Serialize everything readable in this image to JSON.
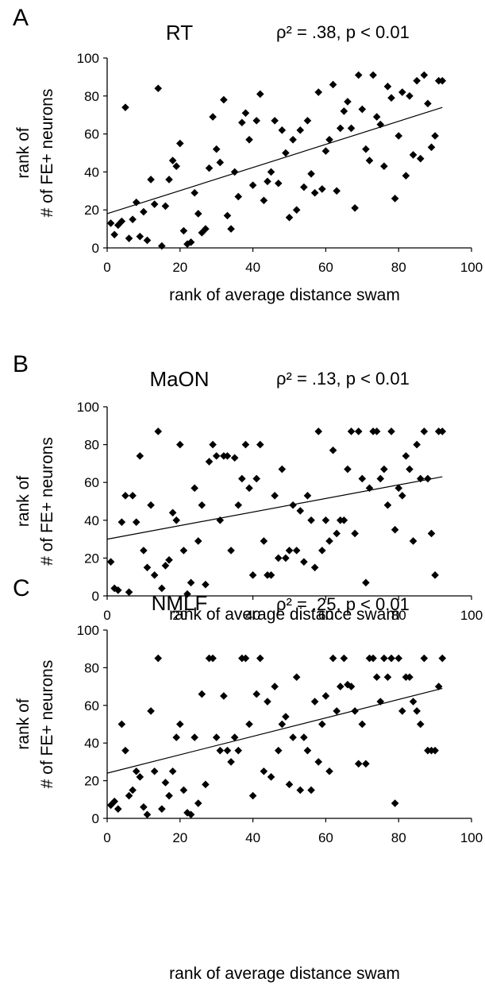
{
  "chart_data": [
    {
      "type": "scatter",
      "panel_letter": "A",
      "title": "RT",
      "stat_label": "ρ² = .38, p < 0.01",
      "xlabel": "rank of average distance swam",
      "ylabel_line1": "rank of",
      "ylabel_line2": "# of FE+ neurons",
      "xlim": [
        0,
        100
      ],
      "ylim": [
        0,
        100
      ],
      "xticks": [
        0,
        20,
        40,
        60,
        80,
        100
      ],
      "yticks": [
        0,
        20,
        40,
        60,
        80,
        100
      ],
      "grid": false,
      "trendline": {
        "x1": 0,
        "y1": 18,
        "x2": 92,
        "y2": 74
      },
      "points": [
        [
          1,
          13
        ],
        [
          2,
          7
        ],
        [
          3,
          12
        ],
        [
          4,
          14
        ],
        [
          5,
          74
        ],
        [
          6,
          5
        ],
        [
          7,
          15
        ],
        [
          8,
          24
        ],
        [
          9,
          6
        ],
        [
          10,
          19
        ],
        [
          11,
          4
        ],
        [
          12,
          36
        ],
        [
          13,
          23
        ],
        [
          14,
          84
        ],
        [
          15,
          1
        ],
        [
          16,
          22
        ],
        [
          17,
          36
        ],
        [
          18,
          46
        ],
        [
          19,
          43
        ],
        [
          20,
          55
        ],
        [
          21,
          9
        ],
        [
          22,
          2
        ],
        [
          23,
          3
        ],
        [
          24,
          29
        ],
        [
          25,
          18
        ],
        [
          26,
          8
        ],
        [
          27,
          10
        ],
        [
          28,
          42
        ],
        [
          29,
          69
        ],
        [
          30,
          52
        ],
        [
          31,
          45
        ],
        [
          32,
          78
        ],
        [
          33,
          17
        ],
        [
          34,
          10
        ],
        [
          35,
          40
        ],
        [
          36,
          27
        ],
        [
          37,
          66
        ],
        [
          38,
          71
        ],
        [
          39,
          57
        ],
        [
          40,
          33
        ],
        [
          41,
          67
        ],
        [
          42,
          81
        ],
        [
          43,
          25
        ],
        [
          44,
          35
        ],
        [
          45,
          40
        ],
        [
          46,
          67
        ],
        [
          47,
          34
        ],
        [
          48,
          62
        ],
        [
          49,
          50
        ],
        [
          50,
          16
        ],
        [
          51,
          57
        ],
        [
          52,
          20
        ],
        [
          53,
          62
        ],
        [
          54,
          32
        ],
        [
          55,
          67
        ],
        [
          56,
          39
        ],
        [
          57,
          29
        ],
        [
          58,
          82
        ],
        [
          59,
          31
        ],
        [
          60,
          51
        ],
        [
          61,
          57
        ],
        [
          62,
          86
        ],
        [
          63,
          30
        ],
        [
          64,
          63
        ],
        [
          65,
          72
        ],
        [
          66,
          77
        ],
        [
          67,
          63
        ],
        [
          68,
          21
        ],
        [
          69,
          91
        ],
        [
          70,
          73
        ],
        [
          71,
          52
        ],
        [
          72,
          46
        ],
        [
          73,
          91
        ],
        [
          74,
          69
        ],
        [
          75,
          65
        ],
        [
          76,
          43
        ],
        [
          77,
          85
        ],
        [
          78,
          79
        ],
        [
          79,
          26
        ],
        [
          80,
          59
        ],
        [
          81,
          82
        ],
        [
          82,
          38
        ],
        [
          83,
          80
        ],
        [
          84,
          49
        ],
        [
          85,
          88
        ],
        [
          86,
          47
        ],
        [
          87,
          91
        ],
        [
          88,
          76
        ],
        [
          89,
          53
        ],
        [
          90,
          59
        ],
        [
          91,
          88
        ],
        [
          92,
          88
        ]
      ]
    },
    {
      "type": "scatter",
      "panel_letter": "B",
      "title": "MaON",
      "stat_label": "ρ² = .13, p < 0.01",
      "xlabel": "rank of average distance swam",
      "ylabel_line1": "rank of",
      "ylabel_line2": "# of FE+ neurons",
      "xlim": [
        0,
        100
      ],
      "ylim": [
        0,
        100
      ],
      "xticks": [
        0,
        20,
        40,
        60,
        80,
        100
      ],
      "yticks": [
        0,
        20,
        40,
        60,
        80,
        100
      ],
      "grid": false,
      "trendline": {
        "x1": 0,
        "y1": 30,
        "x2": 92,
        "y2": 63
      },
      "points": [
        [
          1,
          18
        ],
        [
          2,
          4
        ],
        [
          3,
          3
        ],
        [
          4,
          39
        ],
        [
          5,
          53
        ],
        [
          6,
          2
        ],
        [
          7,
          53
        ],
        [
          8,
          39
        ],
        [
          9,
          74
        ],
        [
          10,
          24
        ],
        [
          11,
          15
        ],
        [
          12,
          48
        ],
        [
          13,
          11
        ],
        [
          14,
          87
        ],
        [
          15,
          4
        ],
        [
          16,
          16
        ],
        [
          17,
          19
        ],
        [
          18,
          44
        ],
        [
          19,
          40
        ],
        [
          20,
          80
        ],
        [
          21,
          24
        ],
        [
          22,
          1
        ],
        [
          23,
          7
        ],
        [
          24,
          57
        ],
        [
          25,
          29
        ],
        [
          26,
          48
        ],
        [
          27,
          6
        ],
        [
          28,
          71
        ],
        [
          29,
          80
        ],
        [
          30,
          74
        ],
        [
          31,
          40
        ],
        [
          32,
          74
        ],
        [
          33,
          74
        ],
        [
          34,
          24
        ],
        [
          35,
          73
        ],
        [
          36,
          48
        ],
        [
          37,
          62
        ],
        [
          38,
          80
        ],
        [
          39,
          57
        ],
        [
          40,
          11
        ],
        [
          41,
          62
        ],
        [
          42,
          80
        ],
        [
          43,
          29
        ],
        [
          44,
          11
        ],
        [
          45,
          11
        ],
        [
          46,
          53
        ],
        [
          47,
          20
        ],
        [
          48,
          67
        ],
        [
          49,
          20
        ],
        [
          50,
          24
        ],
        [
          51,
          48
        ],
        [
          52,
          24
        ],
        [
          53,
          45
        ],
        [
          54,
          18
        ],
        [
          55,
          53
        ],
        [
          56,
          40
        ],
        [
          57,
          15
        ],
        [
          58,
          87
        ],
        [
          59,
          24
        ],
        [
          60,
          40
        ],
        [
          61,
          29
        ],
        [
          62,
          77
        ],
        [
          63,
          33
        ],
        [
          64,
          40
        ],
        [
          65,
          40
        ],
        [
          66,
          67
        ],
        [
          67,
          87
        ],
        [
          68,
          33
        ],
        [
          69,
          87
        ],
        [
          70,
          62
        ],
        [
          71,
          7
        ],
        [
          72,
          57
        ],
        [
          73,
          87
        ],
        [
          74,
          87
        ],
        [
          75,
          62
        ],
        [
          76,
          67
        ],
        [
          77,
          48
        ],
        [
          78,
          87
        ],
        [
          79,
          35
        ],
        [
          80,
          57
        ],
        [
          81,
          53
        ],
        [
          82,
          74
        ],
        [
          83,
          67
        ],
        [
          84,
          29
        ],
        [
          85,
          80
        ],
        [
          86,
          62
        ],
        [
          87,
          87
        ],
        [
          88,
          62
        ],
        [
          89,
          33
        ],
        [
          90,
          11
        ],
        [
          91,
          87
        ],
        [
          92,
          87
        ]
      ]
    },
    {
      "type": "scatter",
      "panel_letter": "C",
      "title": "NMLF",
      "stat_label": "ρ² = .25, p < 0.01",
      "xlabel": "rank of average distance swam",
      "ylabel_line1": "rank of",
      "ylabel_line2": "# of FE+ neurons",
      "xlim": [
        0,
        100
      ],
      "ylim": [
        0,
        100
      ],
      "xticks": [
        0,
        20,
        40,
        60,
        80,
        100
      ],
      "yticks": [
        0,
        20,
        40,
        60,
        80,
        100
      ],
      "grid": false,
      "trendline": {
        "x1": 0,
        "y1": 24,
        "x2": 92,
        "y2": 69
      },
      "points": [
        [
          1,
          7
        ],
        [
          2,
          9
        ],
        [
          3,
          5
        ],
        [
          4,
          50
        ],
        [
          5,
          36
        ],
        [
          6,
          12
        ],
        [
          7,
          15
        ],
        [
          8,
          25
        ],
        [
          9,
          22
        ],
        [
          10,
          6
        ],
        [
          11,
          2
        ],
        [
          12,
          57
        ],
        [
          13,
          25
        ],
        [
          14,
          85
        ],
        [
          15,
          5
        ],
        [
          16,
          19
        ],
        [
          17,
          12
        ],
        [
          18,
          25
        ],
        [
          19,
          43
        ],
        [
          20,
          50
        ],
        [
          21,
          15
        ],
        [
          22,
          3
        ],
        [
          23,
          2
        ],
        [
          24,
          43
        ],
        [
          25,
          8
        ],
        [
          26,
          66
        ],
        [
          27,
          18
        ],
        [
          28,
          85
        ],
        [
          29,
          85
        ],
        [
          30,
          43
        ],
        [
          31,
          36
        ],
        [
          32,
          65
        ],
        [
          33,
          36
        ],
        [
          34,
          30
        ],
        [
          35,
          43
        ],
        [
          36,
          36
        ],
        [
          37,
          85
        ],
        [
          38,
          85
        ],
        [
          39,
          50
        ],
        [
          40,
          12
        ],
        [
          41,
          66
        ],
        [
          42,
          85
        ],
        [
          43,
          25
        ],
        [
          44,
          62
        ],
        [
          45,
          22
        ],
        [
          46,
          70
        ],
        [
          47,
          36
        ],
        [
          48,
          50
        ],
        [
          49,
          54
        ],
        [
          50,
          18
        ],
        [
          51,
          43
        ],
        [
          52,
          75
        ],
        [
          53,
          15
        ],
        [
          54,
          43
        ],
        [
          55,
          36
        ],
        [
          56,
          15
        ],
        [
          57,
          62
        ],
        [
          58,
          30
        ],
        [
          59,
          50
        ],
        [
          60,
          65
        ],
        [
          61,
          25
        ],
        [
          62,
          85
        ],
        [
          63,
          57
        ],
        [
          64,
          70
        ],
        [
          65,
          85
        ],
        [
          66,
          71
        ],
        [
          67,
          70
        ],
        [
          68,
          57
        ],
        [
          69,
          29
        ],
        [
          70,
          50
        ],
        [
          71,
          29
        ],
        [
          72,
          85
        ],
        [
          73,
          85
        ],
        [
          74,
          75
        ],
        [
          75,
          62
        ],
        [
          76,
          85
        ],
        [
          77,
          75
        ],
        [
          78,
          85
        ],
        [
          79,
          8
        ],
        [
          80,
          85
        ],
        [
          81,
          57
        ],
        [
          82,
          75
        ],
        [
          83,
          75
        ],
        [
          84,
          62
        ],
        [
          85,
          57
        ],
        [
          86,
          50
        ],
        [
          87,
          85
        ],
        [
          88,
          36
        ],
        [
          89,
          36
        ],
        [
          90,
          36
        ],
        [
          91,
          70
        ],
        [
          92,
          85
        ]
      ]
    }
  ]
}
